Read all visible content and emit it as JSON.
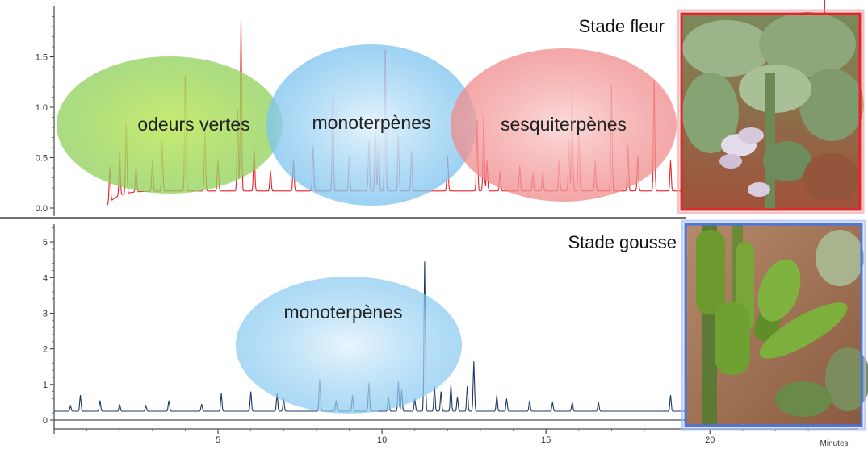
{
  "colors": {
    "flower_trace": "#e8222a",
    "pod_trace": "#1f3764",
    "axis": "#222222",
    "green_zone": "#8fd05a",
    "blue_zone": "#7cc3ef",
    "red_zone": "#f08a8a",
    "flower_frame": "#e8222a",
    "pod_frame": "#4a73e8"
  },
  "icons": {
    "flower_photo": "faba-bean-flower-photo",
    "pod_photo": "faba-bean-pod-photo"
  },
  "chart_data": [
    {
      "type": "line",
      "panel": "top",
      "title": "Stade fleur",
      "xlabel": "",
      "ylabel": "",
      "xlim": [
        0,
        24.5
      ],
      "ylim": [
        -0.05,
        2.0
      ],
      "yticks": [
        0.0,
        0.5,
        1.0,
        1.5
      ],
      "ytick_labels": [
        "0.0",
        "0.5",
        "1.0",
        "1.5"
      ],
      "baseline": 0.02,
      "signal_start": 1.6,
      "rise_level": 0.15,
      "peaks": [
        [
          1.7,
          0.35
        ],
        [
          2.0,
          0.45
        ],
        [
          2.2,
          0.7
        ],
        [
          2.5,
          0.25
        ],
        [
          3.0,
          0.3
        ],
        [
          3.3,
          0.5
        ],
        [
          4.0,
          1.15
        ],
        [
          4.6,
          0.6
        ],
        [
          5.0,
          0.3
        ],
        [
          5.6,
          0.8
        ],
        [
          5.7,
          1.7
        ],
        [
          6.1,
          0.45
        ],
        [
          6.6,
          0.2
        ],
        [
          7.3,
          0.3
        ],
        [
          7.9,
          0.45
        ],
        [
          8.5,
          0.95
        ],
        [
          9.0,
          0.35
        ],
        [
          9.6,
          0.5
        ],
        [
          9.8,
          0.65
        ],
        [
          9.9,
          0.45
        ],
        [
          10.1,
          1.4
        ],
        [
          10.5,
          0.55
        ],
        [
          10.9,
          0.4
        ],
        [
          12.0,
          0.35
        ],
        [
          12.9,
          0.7
        ],
        [
          13.1,
          0.75
        ],
        [
          13.2,
          0.3
        ],
        [
          13.6,
          0.2
        ],
        [
          14.2,
          0.25
        ],
        [
          14.6,
          0.18
        ],
        [
          14.9,
          0.2
        ],
        [
          15.4,
          0.3
        ],
        [
          15.7,
          0.5
        ],
        [
          15.8,
          1.05
        ],
        [
          16.0,
          0.7
        ],
        [
          16.5,
          0.3
        ],
        [
          17.0,
          1.05
        ],
        [
          17.5,
          0.45
        ],
        [
          17.8,
          0.35
        ],
        [
          18.3,
          1.1
        ],
        [
          18.8,
          0.3
        ],
        [
          19.7,
          0.2
        ],
        [
          21.0,
          0.2
        ],
        [
          22.3,
          1.0
        ],
        [
          22.9,
          0.4
        ],
        [
          23.2,
          0.2
        ],
        [
          23.5,
          1.9
        ],
        [
          24.1,
          0.35
        ]
      ],
      "annotations": [
        {
          "text": "odeurs vertes",
          "x_range": [
            2.0,
            7.0
          ]
        },
        {
          "text": "monoterpènes",
          "x_range": [
            7.5,
            13.0
          ]
        },
        {
          "text": "sesquiterpènes",
          "x_range": [
            13.5,
            18.5
          ]
        }
      ]
    },
    {
      "type": "line",
      "panel": "bottom",
      "title": "Stade gousse",
      "xlabel": "Minutes",
      "ylabel": "",
      "xlim": [
        0,
        24.5
      ],
      "ylim": [
        -0.2,
        5.5
      ],
      "yticks": [
        0,
        1,
        2,
        3,
        4,
        5
      ],
      "ytick_labels": [
        "0",
        "1",
        "2",
        "3",
        "4",
        "5"
      ],
      "xticks": [
        0,
        5,
        10,
        15,
        20
      ],
      "xtick_labels": [
        "",
        "5",
        "10",
        "15",
        "20"
      ],
      "baseline": 0.25,
      "signal_start": 0.0,
      "rise_level": 0.0,
      "peaks": [
        [
          0.5,
          0.15
        ],
        [
          0.8,
          0.45
        ],
        [
          1.4,
          0.3
        ],
        [
          2.0,
          0.2
        ],
        [
          2.8,
          0.15
        ],
        [
          3.5,
          0.3
        ],
        [
          4.5,
          0.2
        ],
        [
          5.1,
          0.5
        ],
        [
          6.0,
          0.55
        ],
        [
          6.8,
          0.5
        ],
        [
          7.0,
          0.35
        ],
        [
          8.1,
          0.9
        ],
        [
          8.6,
          0.3
        ],
        [
          9.1,
          0.45
        ],
        [
          9.6,
          0.8
        ],
        [
          10.2,
          0.4
        ],
        [
          10.5,
          0.85
        ],
        [
          10.6,
          0.6
        ],
        [
          11.0,
          0.35
        ],
        [
          11.3,
          4.2
        ],
        [
          11.6,
          0.7
        ],
        [
          11.8,
          0.55
        ],
        [
          12.1,
          0.75
        ],
        [
          12.3,
          0.4
        ],
        [
          12.6,
          0.7
        ],
        [
          12.8,
          1.4
        ],
        [
          13.5,
          0.45
        ],
        [
          13.8,
          0.35
        ],
        [
          14.5,
          0.3
        ],
        [
          15.2,
          0.25
        ],
        [
          15.8,
          0.25
        ],
        [
          16.6,
          0.25
        ],
        [
          18.8,
          0.45
        ]
      ],
      "signal_end": 19.8,
      "annotations": [
        {
          "text": "monoterpènes",
          "x_range": [
            9.5,
            15.0
          ]
        }
      ]
    }
  ]
}
